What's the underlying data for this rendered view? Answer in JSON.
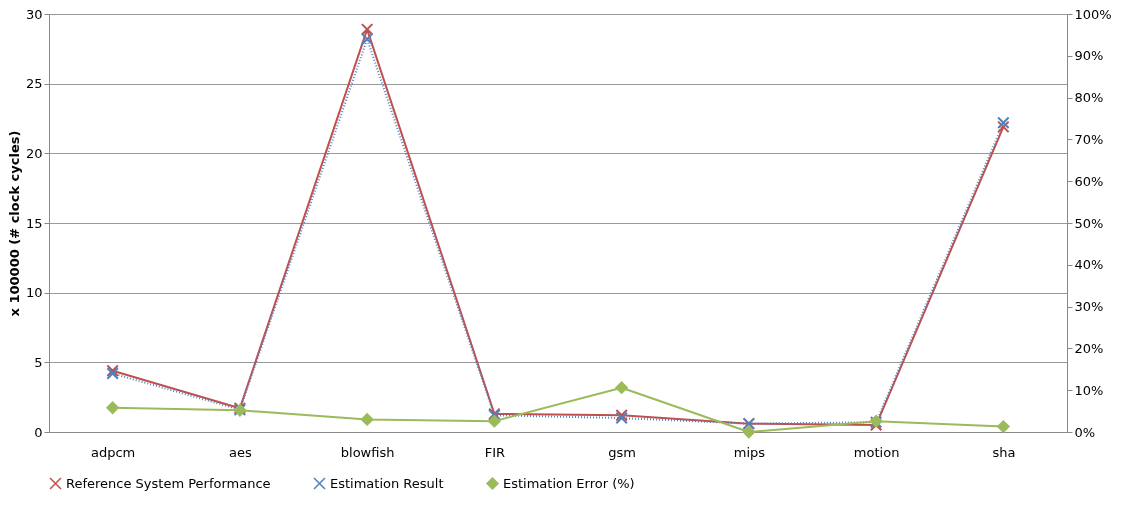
{
  "chart_data": {
    "type": "line",
    "ylabel": "x 100000 (# clock cycles)",
    "categories": [
      "adpcm",
      "aes",
      "blowfish",
      "FIR",
      "gsm",
      "mips",
      "motion",
      "sha"
    ],
    "series": [
      {
        "name": "Reference System Performance",
        "color": "#c0504d",
        "marker": "cross",
        "line_style": "solid",
        "values": [
          4.4,
          1.7,
          28.9,
          1.3,
          1.2,
          0.6,
          0.5,
          21.9
        ]
      },
      {
        "name": "Estimation Result",
        "color": "#4f81bd",
        "marker": "cross",
        "line_style": "dotted",
        "values": [
          4.2,
          1.6,
          28.2,
          1.2,
          1.0,
          0.6,
          0.7,
          22.2
        ]
      },
      {
        "name": "Estimation Error (%)",
        "color": "#9bbb59",
        "marker": "diamond",
        "line_style": "solid",
        "axis": "y2",
        "values": [
          5.8,
          5.2,
          3.0,
          2.6,
          10.6,
          0.0,
          2.6,
          1.3
        ]
      }
    ],
    "ylim": [
      0,
      30
    ],
    "yticks": [
      0,
      5,
      10,
      15,
      20,
      25,
      30
    ],
    "y2lim": [
      0,
      100
    ],
    "y2ticks": [
      {
        "value": 0,
        "label": "0%"
      },
      {
        "value": 10,
        "label": "10%"
      },
      {
        "value": 20,
        "label": "20%"
      },
      {
        "value": 30,
        "label": "30%"
      },
      {
        "value": 40,
        "label": "40%"
      },
      {
        "value": 50,
        "label": "50%"
      },
      {
        "value": 60,
        "label": "60%"
      },
      {
        "value": 70,
        "label": "70%"
      },
      {
        "value": 80,
        "label": "80%"
      },
      {
        "value": 90,
        "label": "90%"
      },
      {
        "value": 100,
        "label": "100%"
      }
    ],
    "grid": "y",
    "legend": "bottom"
  }
}
